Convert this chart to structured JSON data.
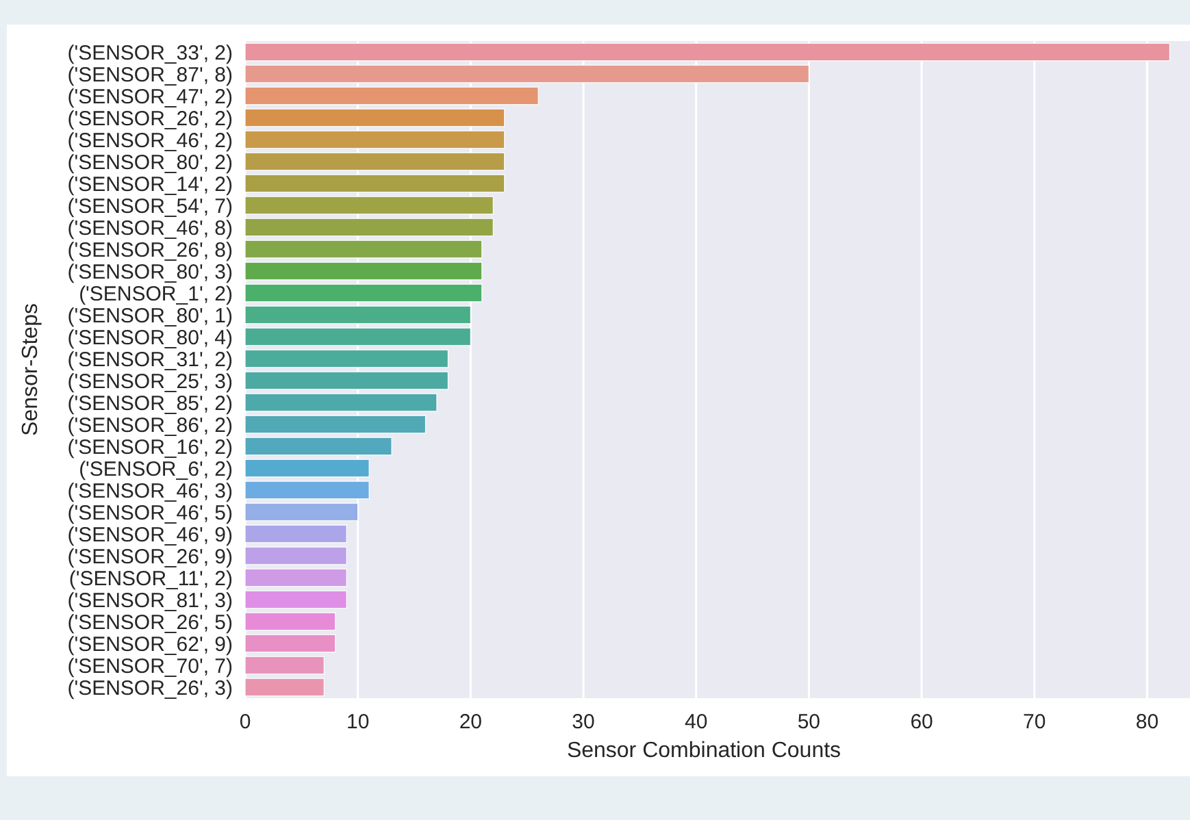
{
  "chart_data": {
    "type": "bar",
    "orientation": "horizontal",
    "xlabel": "Sensor Combination Counts",
    "ylabel": "Sensor-Steps",
    "categories": [
      "('SENSOR_33', 2)",
      "('SENSOR_87', 8)",
      "('SENSOR_47', 2)",
      "('SENSOR_26', 2)",
      "('SENSOR_46', 2)",
      "('SENSOR_80', 2)",
      "('SENSOR_14', 2)",
      "('SENSOR_54', 7)",
      "('SENSOR_46', 8)",
      "('SENSOR_26', 8)",
      "('SENSOR_80', 3)",
      "('SENSOR_1', 2)",
      "('SENSOR_80', 1)",
      "('SENSOR_80', 4)",
      "('SENSOR_31', 2)",
      "('SENSOR_25', 3)",
      "('SENSOR_85', 2)",
      "('SENSOR_86', 2)",
      "('SENSOR_16', 2)",
      "('SENSOR_6', 2)",
      "('SENSOR_46', 3)",
      "('SENSOR_46', 5)",
      "('SENSOR_46', 9)",
      "('SENSOR_26', 9)",
      "('SENSOR_11', 2)",
      "('SENSOR_81', 3)",
      "('SENSOR_26', 5)",
      "('SENSOR_62', 9)",
      "('SENSOR_70', 7)",
      "('SENSOR_26', 3)"
    ],
    "values": [
      82,
      50,
      26,
      23,
      23,
      23,
      23,
      22,
      22,
      21,
      21,
      21,
      20,
      20,
      18,
      18,
      17,
      16,
      13,
      11,
      11,
      10,
      9,
      9,
      9,
      9,
      8,
      8,
      7,
      7
    ],
    "colors": [
      "#e8939e",
      "#e69a8d",
      "#e4946f",
      "#d6914a",
      "#c89a4a",
      "#b79d48",
      "#a99f45",
      "#9ea446",
      "#93a446",
      "#82a848",
      "#5fab4b",
      "#4bb06b",
      "#4aae88",
      "#4aad93",
      "#4bac9c",
      "#4caaa3",
      "#4ea9ab",
      "#50a9b4",
      "#52a8bd",
      "#55aad0",
      "#6cace1",
      "#94aee8",
      "#aba6ea",
      "#bca1e9",
      "#cf9ae6",
      "#df8ee6",
      "#e78bd8",
      "#e890c6",
      "#e893bb",
      "#e995ae"
    ],
    "xlim": [
      0,
      83.8
    ],
    "xticks": [
      0,
      10,
      20,
      30,
      40,
      50,
      60,
      70,
      80
    ],
    "grid": "x"
  }
}
